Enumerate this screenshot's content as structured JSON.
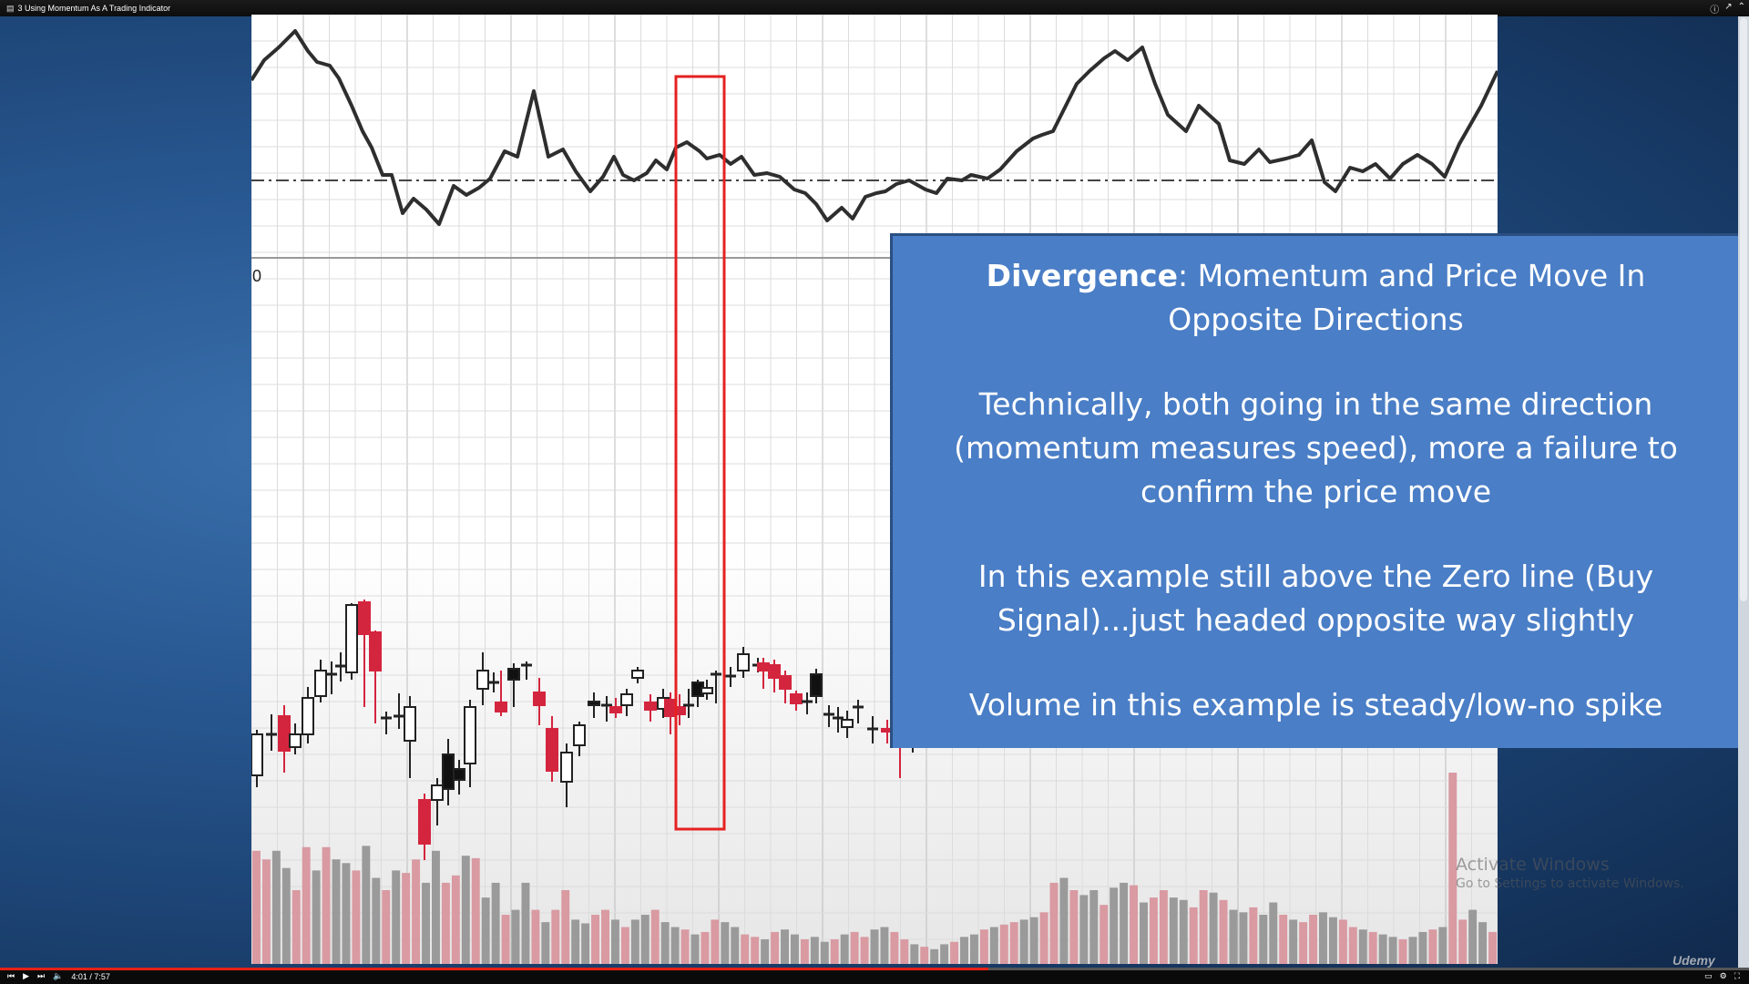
{
  "window": {
    "title": "3 Using Momentum As A Trading Indicator"
  },
  "slide": {
    "heading_bold": "Divergence",
    "heading_rest": ": Momentum and Price Move In Opposite Directions",
    "para1": "Technically, both going in the same direction (momentum measures speed), more a failure to confirm the price move",
    "para2": "In this example still above the Zero line (Buy Signal)...just headed opposite way slightly",
    "para3": "Volume in this example is steady/low-no spike"
  },
  "watermark": {
    "line1": "Activate Windows",
    "line2": "Go to Settings to activate Windows."
  },
  "player": {
    "time": "4:01 / 7:57",
    "progress": 0.565,
    "logo": "Udemy"
  },
  "colors": {
    "up": "#111111",
    "down": "#d4253e",
    "highlight": "#e52121",
    "box": "#4a7ec6"
  }
}
